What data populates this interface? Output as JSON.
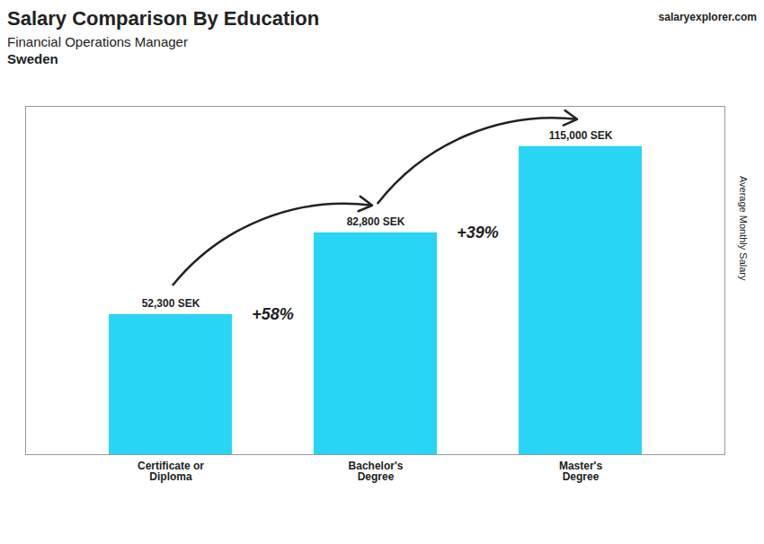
{
  "chart_data": {
    "type": "bar",
    "title": "Salary Comparison By Education",
    "subtitle": "Financial Operations Manager",
    "country": "Sweden",
    "watermark": "salaryexplorer.com",
    "ylabel": "Average Monthly Salary",
    "categories": [
      "Certificate or\nDiploma",
      "Bachelor's\nDegree",
      "Master's\nDegree"
    ],
    "values": [
      52300,
      82800,
      115000
    ],
    "value_labels": [
      "52,300 SEK",
      "82,800 SEK",
      "115,000 SEK"
    ],
    "data_labels": true,
    "annotations": [
      "+58%",
      "+39%"
    ],
    "color": "#29D5F5",
    "ylim": [
      0,
      130000
    ],
    "tick_labels": "x",
    "grid": false
  }
}
